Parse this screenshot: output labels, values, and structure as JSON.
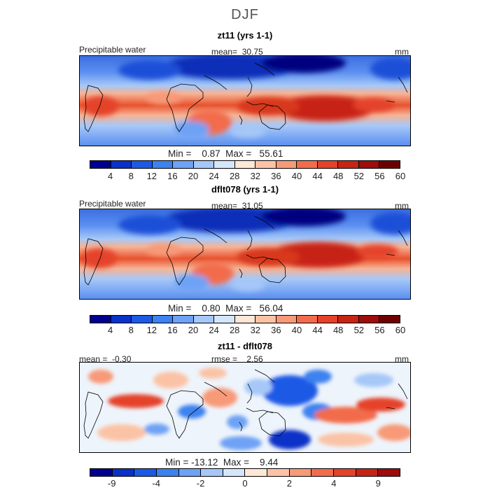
{
  "figure_title": "DJF",
  "panels": [
    {
      "title": "zt11 (yrs 1-1)",
      "left_label": "Precipitable water",
      "stat_label": "mean=  30.75",
      "units": "mm",
      "minmax_text": "Min =    0.87  Max =   55.61",
      "colorbar": {
        "colors": [
          "#00008f",
          "#0a32c8",
          "#1c5ae6",
          "#3c82f0",
          "#6ea2f5",
          "#a6c8f8",
          "#d6e6fa",
          "#fde7d6",
          "#fbc3a6",
          "#f79a78",
          "#f26c4c",
          "#e5422a",
          "#c72414",
          "#9e0c0c",
          "#6e0000"
        ],
        "tick_labels": [
          "4",
          "8",
          "12",
          "16",
          "20",
          "24",
          "28",
          "32",
          "36",
          "40",
          "44",
          "48",
          "52",
          "56",
          "60"
        ]
      },
      "mean": 30.75,
      "min": 0.87,
      "max": 55.61
    },
    {
      "title": "dflt078 (yrs 1-1)",
      "left_label": "Precipitable water",
      "stat_label": "mean=  31.05",
      "units": "mm",
      "minmax_text": "Min =    0.80  Max =   56.04",
      "colorbar": {
        "colors": [
          "#00008f",
          "#0a32c8",
          "#1c5ae6",
          "#3c82f0",
          "#6ea2f5",
          "#a6c8f8",
          "#d6e6fa",
          "#fde7d6",
          "#fbc3a6",
          "#f79a78",
          "#f26c4c",
          "#e5422a",
          "#c72414",
          "#9e0c0c",
          "#6e0000"
        ],
        "tick_labels": [
          "4",
          "8",
          "12",
          "16",
          "20",
          "24",
          "28",
          "32",
          "36",
          "40",
          "44",
          "48",
          "52",
          "56",
          "60"
        ]
      },
      "mean": 31.05,
      "min": 0.8,
      "max": 56.04
    },
    {
      "title": "zt11 - dflt078",
      "left_label": "mean =  -0.30",
      "stat_label": "rmse =    2.56",
      "units": "mm",
      "minmax_text": "Min = -13.12  Max =    9.44",
      "colorbar": {
        "colors": [
          "#00008f",
          "#0a32c8",
          "#1c5ae6",
          "#3c82f0",
          "#6ea2f5",
          "#a6c8f8",
          "#d6e6fa",
          "#fde7d6",
          "#fbc3a6",
          "#f79a78",
          "#f26c4c",
          "#e5422a",
          "#c72414",
          "#9e0c0c"
        ],
        "tick_labels": [
          "-9",
          "-4",
          "-2",
          "0",
          "2",
          "4",
          "9"
        ]
      },
      "mean": -0.3,
      "rmse": 2.56,
      "min": -13.12,
      "max": 9.44
    }
  ]
}
